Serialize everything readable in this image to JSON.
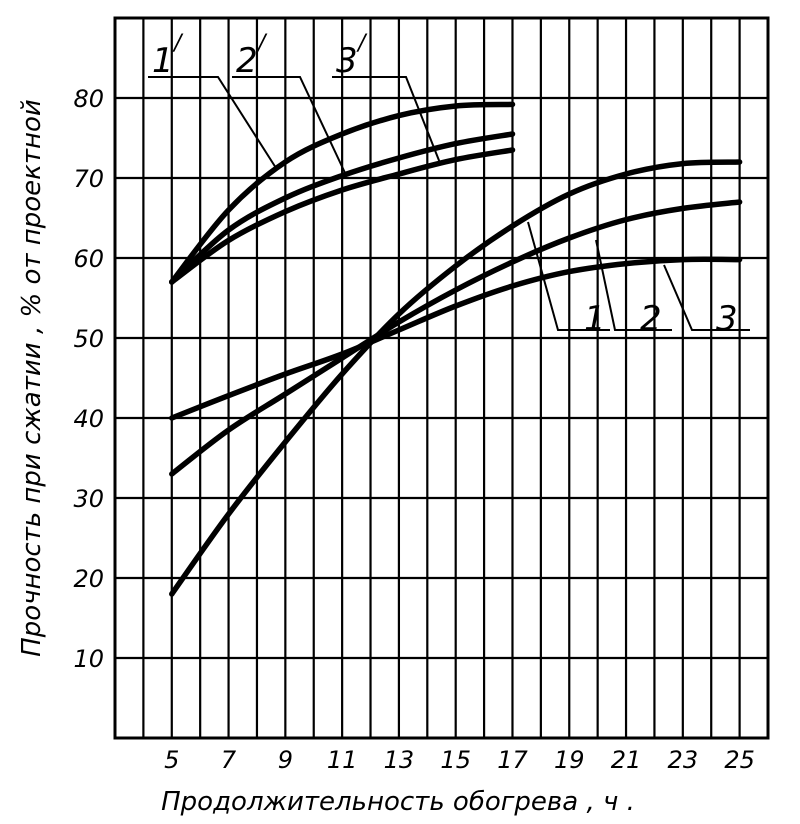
{
  "chart_data": {
    "type": "line",
    "title": "",
    "xlabel": "Продолжительность обогрева , ч .",
    "ylabel": "Прочность при сжатии ,  %  от проектной",
    "xlim": [
      3,
      26
    ],
    "ylim": [
      0,
      90
    ],
    "x_ticks": [
      5,
      7,
      9,
      11,
      13,
      15,
      17,
      19,
      21,
      23,
      25
    ],
    "y_ticks": [
      10,
      20,
      30,
      40,
      50,
      60,
      70,
      80
    ],
    "grid": true,
    "series": [
      {
        "name": "1",
        "label": "1",
        "prime": "",
        "points": [
          [
            5,
            18
          ],
          [
            7,
            28
          ],
          [
            9,
            37
          ],
          [
            11,
            45.5
          ],
          [
            13,
            53
          ],
          [
            15,
            59
          ],
          [
            17,
            64
          ],
          [
            19,
            68
          ],
          [
            21,
            70.5
          ],
          [
            23,
            71.8
          ],
          [
            25,
            72
          ]
        ]
      },
      {
        "name": "2",
        "label": "2",
        "prime": "",
        "points": [
          [
            5,
            33
          ],
          [
            7,
            38.5
          ],
          [
            9,
            43
          ],
          [
            11,
            47.5
          ],
          [
            13,
            52
          ],
          [
            15,
            56
          ],
          [
            17,
            59.5
          ],
          [
            19,
            62.5
          ],
          [
            21,
            64.8
          ],
          [
            23,
            66.2
          ],
          [
            25,
            67
          ]
        ]
      },
      {
        "name": "3",
        "label": "3",
        "prime": "",
        "points": [
          [
            5,
            40
          ],
          [
            7,
            42.8
          ],
          [
            9,
            45.5
          ],
          [
            11,
            48
          ],
          [
            13,
            51
          ],
          [
            15,
            54
          ],
          [
            17,
            56.5
          ],
          [
            19,
            58.3
          ],
          [
            21,
            59.3
          ],
          [
            23,
            59.8
          ],
          [
            25,
            59.8
          ]
        ]
      },
      {
        "name": "1'",
        "label": "1",
        "prime": "/",
        "points": [
          [
            5,
            57
          ],
          [
            7,
            66
          ],
          [
            9,
            72
          ],
          [
            11,
            75.5
          ],
          [
            13,
            77.8
          ],
          [
            15,
            79
          ],
          [
            17,
            79.2
          ]
        ]
      },
      {
        "name": "2'",
        "label": "2",
        "prime": "/",
        "points": [
          [
            5,
            57
          ],
          [
            7,
            63.5
          ],
          [
            9,
            67.5
          ],
          [
            11,
            70.3
          ],
          [
            13,
            72.5
          ],
          [
            15,
            74.3
          ],
          [
            17,
            75.5
          ]
        ]
      },
      {
        "name": "3'",
        "label": "3",
        "prime": "/",
        "points": [
          [
            5,
            57
          ],
          [
            7,
            62.2
          ],
          [
            9,
            65.8
          ],
          [
            11,
            68.5
          ],
          [
            13,
            70.5
          ],
          [
            15,
            72.3
          ],
          [
            17,
            73.5
          ]
        ]
      }
    ]
  }
}
